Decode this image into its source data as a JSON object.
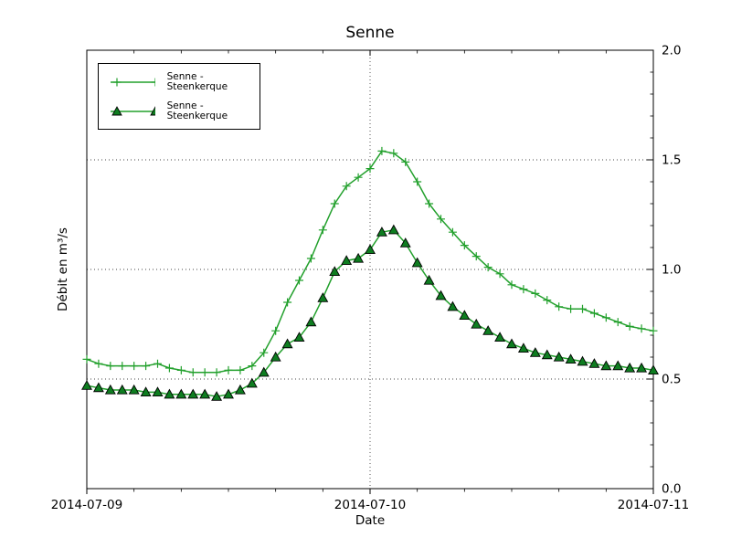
{
  "chart_data": {
    "type": "line",
    "title": "Senne",
    "xlabel": "Date",
    "ylabel": "Débit en m³/s",
    "grid": {
      "style": "dotted",
      "color": "#444444",
      "horizontal_at": [
        0.5,
        1.0,
        1.5
      ],
      "vertical_at_hours": [
        24
      ]
    },
    "x_axis": {
      "unit": "hours since 2014-07-09 00:00",
      "range_hours": [
        0,
        48
      ],
      "major_tick_hours": [
        0,
        24,
        48
      ],
      "tick_labels": [
        "2014-07-09",
        "2014-07-10",
        "2014-07-11"
      ],
      "minor_tick_hours": [
        4,
        8,
        12,
        16,
        20,
        28,
        32,
        36,
        40,
        44
      ]
    },
    "y_axis": {
      "range": [
        0.0,
        2.0
      ],
      "major_tick_values": [
        0.0,
        0.5,
        1.0,
        1.5,
        2.0
      ],
      "tick_labels": [
        "0.0",
        "0.5",
        "1.0",
        "1.5",
        "2.0"
      ],
      "minor_tick_step": 0.1,
      "labels_side": "right"
    },
    "x_hours": [
      0,
      1,
      2,
      3,
      4,
      5,
      6,
      7,
      8,
      9,
      10,
      11,
      12,
      13,
      14,
      15,
      16,
      17,
      18,
      19,
      20,
      21,
      22,
      23,
      24,
      25,
      26,
      27,
      28,
      29,
      30,
      31,
      32,
      33,
      34,
      35,
      36,
      37,
      38,
      39,
      40,
      41,
      42,
      43,
      44,
      45,
      46,
      47,
      48
    ],
    "series": [
      {
        "name": "Senne - Steenkerque",
        "marker": "plus",
        "line_color": "#22a02c",
        "marker_color": "#22a02c",
        "values": [
          0.59,
          0.57,
          0.56,
          0.56,
          0.56,
          0.56,
          0.57,
          0.55,
          0.54,
          0.53,
          0.53,
          0.53,
          0.54,
          0.54,
          0.56,
          0.62,
          0.72,
          0.85,
          0.95,
          1.05,
          1.18,
          1.3,
          1.38,
          1.42,
          1.46,
          1.54,
          1.53,
          1.49,
          1.4,
          1.3,
          1.23,
          1.17,
          1.11,
          1.06,
          1.01,
          0.98,
          0.93,
          0.91,
          0.89,
          0.86,
          0.83,
          0.82,
          0.82,
          0.8,
          0.78,
          0.76,
          0.74,
          0.73,
          0.72
        ]
      },
      {
        "name": "Senne - Steenkerque",
        "marker": "triangle-up",
        "line_color": "#22a02c",
        "marker_fill": "#0e7d20",
        "marker_edge": "#000000",
        "values": [
          0.47,
          0.46,
          0.45,
          0.45,
          0.45,
          0.44,
          0.44,
          0.43,
          0.43,
          0.43,
          0.43,
          0.42,
          0.43,
          0.45,
          0.48,
          0.53,
          0.6,
          0.66,
          0.69,
          0.76,
          0.87,
          0.99,
          1.04,
          1.05,
          1.09,
          1.17,
          1.18,
          1.12,
          1.03,
          0.95,
          0.88,
          0.83,
          0.79,
          0.75,
          0.72,
          0.69,
          0.66,
          0.64,
          0.62,
          0.61,
          0.6,
          0.59,
          0.58,
          0.57,
          0.56,
          0.56,
          0.55,
          0.55,
          0.54
        ]
      }
    ],
    "legend": {
      "position": "upper-left",
      "entries": [
        "Senne - Steenkerque",
        "Senne - Steenkerque"
      ]
    }
  }
}
